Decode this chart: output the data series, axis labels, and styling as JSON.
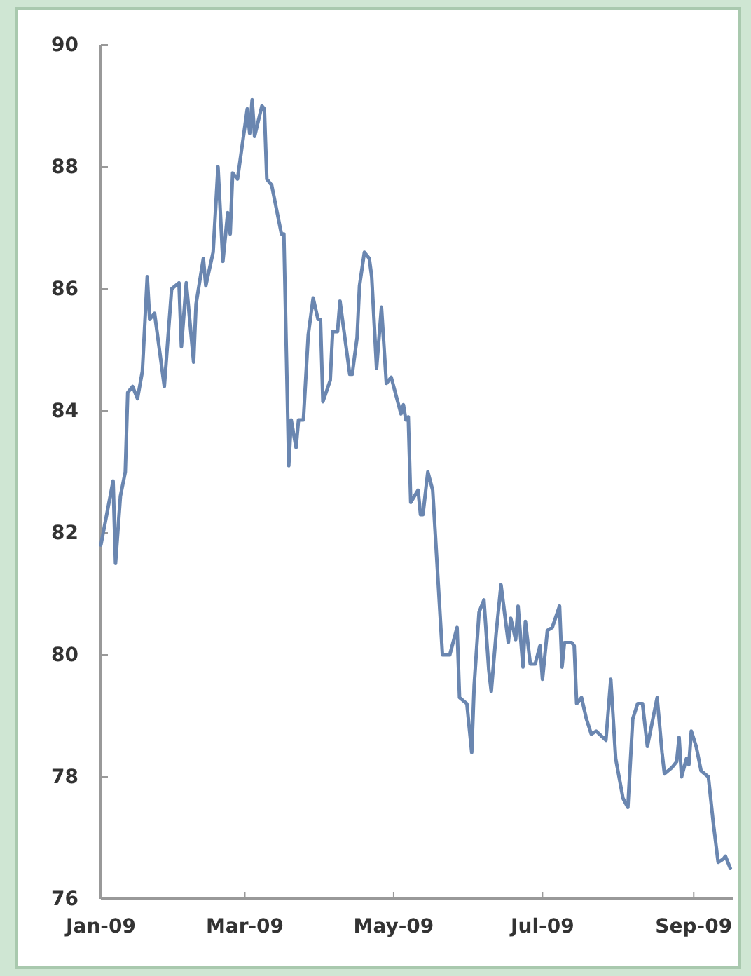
{
  "chart_data": {
    "type": "line",
    "x": [
      "2009-01-01",
      "2009-01-06",
      "2009-01-07",
      "2009-01-09",
      "2009-01-11",
      "2009-01-12",
      "2009-01-14",
      "2009-01-16",
      "2009-01-18",
      "2009-01-20",
      "2009-01-21",
      "2009-01-23",
      "2009-01-27",
      "2009-01-30",
      "2009-02-02",
      "2009-02-03",
      "2009-02-05",
      "2009-02-08",
      "2009-02-09",
      "2009-02-12",
      "2009-02-13",
      "2009-02-16",
      "2009-02-18",
      "2009-02-20",
      "2009-02-22",
      "2009-02-23",
      "2009-02-24",
      "2009-02-26",
      "2009-03-02",
      "2009-03-03",
      "2009-03-04",
      "2009-03-05",
      "2009-03-08",
      "2009-03-09",
      "2009-03-10",
      "2009-03-12",
      "2009-03-16",
      "2009-03-17",
      "2009-03-19",
      "2009-03-20",
      "2009-03-22",
      "2009-03-23",
      "2009-03-25",
      "2009-03-27",
      "2009-03-29",
      "2009-03-31",
      "2009-04-01",
      "2009-04-02",
      "2009-04-05",
      "2009-04-06",
      "2009-04-08",
      "2009-04-09",
      "2009-04-13",
      "2009-04-14",
      "2009-04-16",
      "2009-04-17",
      "2009-04-19",
      "2009-04-21",
      "2009-04-22",
      "2009-04-24",
      "2009-04-26",
      "2009-04-28",
      "2009-04-30",
      "2009-05-03",
      "2009-05-04",
      "2009-05-05",
      "2009-05-06",
      "2009-05-07",
      "2009-05-08",
      "2009-05-11",
      "2009-05-12",
      "2009-05-13",
      "2009-05-15",
      "2009-05-17",
      "2009-05-21",
      "2009-05-24",
      "2009-05-27",
      "2009-05-28",
      "2009-05-31",
      "2009-06-02",
      "2009-06-03",
      "2009-06-05",
      "2009-06-07",
      "2009-06-09",
      "2009-06-10",
      "2009-06-12",
      "2009-06-14",
      "2009-06-17",
      "2009-06-18",
      "2009-06-20",
      "2009-06-21",
      "2009-06-23",
      "2009-06-24",
      "2009-06-26",
      "2009-06-28",
      "2009-06-30",
      "2009-07-01",
      "2009-07-03",
      "2009-07-05",
      "2009-07-08",
      "2009-07-09",
      "2009-07-10",
      "2009-07-13",
      "2009-07-14",
      "2009-07-15",
      "2009-07-17",
      "2009-07-19",
      "2009-07-21",
      "2009-07-23",
      "2009-07-27",
      "2009-07-29",
      "2009-07-31",
      "2009-08-03",
      "2009-08-05",
      "2009-08-07",
      "2009-08-09",
      "2009-08-11",
      "2009-08-13",
      "2009-08-17",
      "2009-08-19",
      "2009-08-20",
      "2009-08-23",
      "2009-08-25",
      "2009-08-26",
      "2009-08-27",
      "2009-08-29",
      "2009-08-30",
      "2009-08-31",
      "2009-09-02",
      "2009-09-04",
      "2009-09-07",
      "2009-09-09",
      "2009-09-11",
      "2009-09-13",
      "2009-09-14",
      "2009-09-16"
    ],
    "series": [
      {
        "color": "#6a86b0",
        "values": [
          81.8,
          82.85,
          81.5,
          82.6,
          83.0,
          84.3,
          84.4,
          84.2,
          84.65,
          86.2,
          85.5,
          85.6,
          84.4,
          86.0,
          86.1,
          85.05,
          86.1,
          84.8,
          85.75,
          86.5,
          86.05,
          86.6,
          88.0,
          86.45,
          87.25,
          86.9,
          87.9,
          87.8,
          88.95,
          88.55,
          89.1,
          88.5,
          89.0,
          88.95,
          87.8,
          87.7,
          86.9,
          86.9,
          83.1,
          83.85,
          83.4,
          83.85,
          83.85,
          85.25,
          85.85,
          85.5,
          85.5,
          84.15,
          84.5,
          85.3,
          85.3,
          85.8,
          84.6,
          84.6,
          85.2,
          86.05,
          86.6,
          86.5,
          86.2,
          84.7,
          85.7,
          84.45,
          84.55,
          84.1,
          83.95,
          84.1,
          83.85,
          83.9,
          82.5,
          82.7,
          82.3,
          82.3,
          83.0,
          82.7,
          80.0,
          80.0,
          80.45,
          79.3,
          79.2,
          78.4,
          79.5,
          80.7,
          80.9,
          79.75,
          79.4,
          80.35,
          81.15,
          80.2,
          80.6,
          80.25,
          80.8,
          79.8,
          80.55,
          79.85,
          79.85,
          80.15,
          79.6,
          80.4,
          80.45,
          80.8,
          79.8,
          80.2,
          80.2,
          80.15,
          79.2,
          79.3,
          78.95,
          78.7,
          78.75,
          78.6,
          79.6,
          78.3,
          77.65,
          77.5,
          78.95,
          79.2,
          79.2,
          78.5,
          79.3,
          78.4,
          78.05,
          78.15,
          78.25,
          78.65,
          78.0,
          78.3,
          78.2,
          78.75,
          78.5,
          78.1,
          78.0,
          77.25,
          76.6,
          76.65,
          76.7,
          76.5
        ]
      }
    ],
    "xlim": [
      "2009-01-01",
      "2009-09-17"
    ],
    "xticks": [
      {
        "value": "2009-01-01",
        "label": "Jan-09"
      },
      {
        "value": "2009-03-01",
        "label": "Mar-09"
      },
      {
        "value": "2009-05-01",
        "label": "May-09"
      },
      {
        "value": "2009-07-01",
        "label": "Jul-09"
      },
      {
        "value": "2009-09-01",
        "label": "Sep-09"
      }
    ],
    "ylim": [
      76,
      90
    ],
    "yticks": [
      76,
      78,
      80,
      82,
      84,
      86,
      88,
      90
    ],
    "grid": false,
    "marker": "none",
    "line_style": "solid"
  }
}
